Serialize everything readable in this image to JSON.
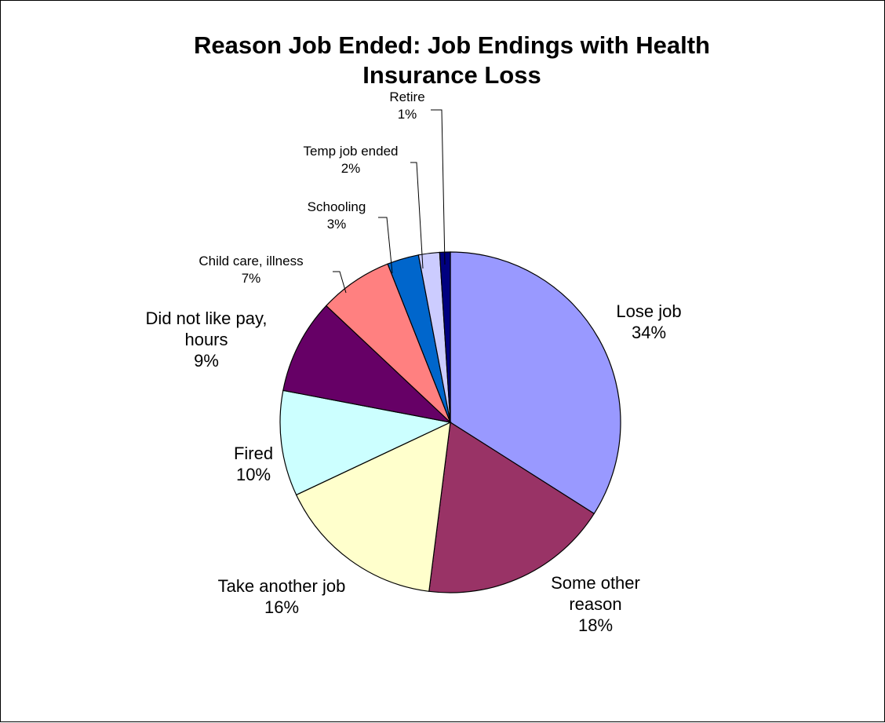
{
  "chart_data": {
    "type": "pie",
    "title": "Reason Job Ended:  Job Endings with Health Insurance Loss",
    "title_lines": [
      "Reason Job Ended:  Job Endings with Health",
      "Insurance Loss"
    ],
    "slices": [
      {
        "label_lines": [
          "Lose job"
        ],
        "value_text": "34%",
        "value": 34,
        "color": "#9999FF"
      },
      {
        "label_lines": [
          "Some other",
          "reason"
        ],
        "value_text": "18%",
        "value": 18,
        "color": "#993366"
      },
      {
        "label_lines": [
          "Take another job"
        ],
        "value_text": "16%",
        "value": 16,
        "color": "#FFFFCC"
      },
      {
        "label_lines": [
          "Fired"
        ],
        "value_text": "10%",
        "value": 10,
        "color": "#CCFFFF"
      },
      {
        "label_lines": [
          "Did not like pay,",
          "hours"
        ],
        "value_text": "9%",
        "value": 9,
        "color": "#660066"
      },
      {
        "label_lines": [
          "Child care, illness"
        ],
        "value_text": "7%",
        "value": 7,
        "color": "#FF8080"
      },
      {
        "label_lines": [
          "Schooling"
        ],
        "value_text": "3%",
        "value": 3,
        "color": "#0066CC"
      },
      {
        "label_lines": [
          "Temp job ended"
        ],
        "value_text": "2%",
        "value": 2,
        "color": "#CCCCFF"
      },
      {
        "label_lines": [
          "Retire"
        ],
        "value_text": "1%",
        "value": 1,
        "color": "#000080"
      }
    ],
    "legend": "none"
  }
}
